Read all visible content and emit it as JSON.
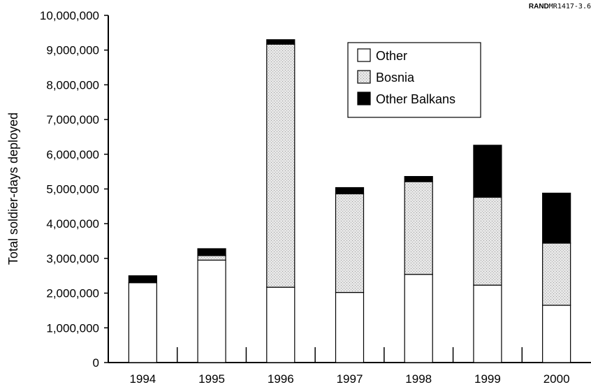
{
  "source_tag": {
    "prefix": "RAND",
    "code": "MR1417-3.6"
  },
  "chart_data": {
    "type": "bar",
    "stacked": true,
    "ylabel": "Total soldier-days deployed",
    "xlabel": "",
    "ylim": [
      0,
      10000000
    ],
    "yticks": [
      0,
      1000000,
      2000000,
      3000000,
      4000000,
      5000000,
      6000000,
      7000000,
      8000000,
      9000000,
      10000000
    ],
    "ytick_labels": [
      "0",
      "1,000,000",
      "2,000,000",
      "3,000,000",
      "4,000,000",
      "5,000,000",
      "6,000,000",
      "7,000,000",
      "8,000,000",
      "9,000,000",
      "10,000,000"
    ],
    "categories": [
      "1994",
      "1995",
      "1996",
      "1997",
      "1998",
      "1999",
      "2000"
    ],
    "series": [
      {
        "name": "Other",
        "values": [
          2300000,
          2950000,
          2170000,
          2020000,
          2540000,
          2230000,
          1650000
        ],
        "color": "#ffffff"
      },
      {
        "name": "Bosnia",
        "values": [
          0,
          130000,
          7000000,
          2840000,
          2670000,
          2530000,
          1790000
        ],
        "color": "#d9d9d9"
      },
      {
        "name": "Other Balkans",
        "values": [
          200000,
          200000,
          130000,
          180000,
          150000,
          1500000,
          1440000
        ],
        "color": "#000000"
      }
    ],
    "legend_position": "top-right",
    "grid": false
  }
}
